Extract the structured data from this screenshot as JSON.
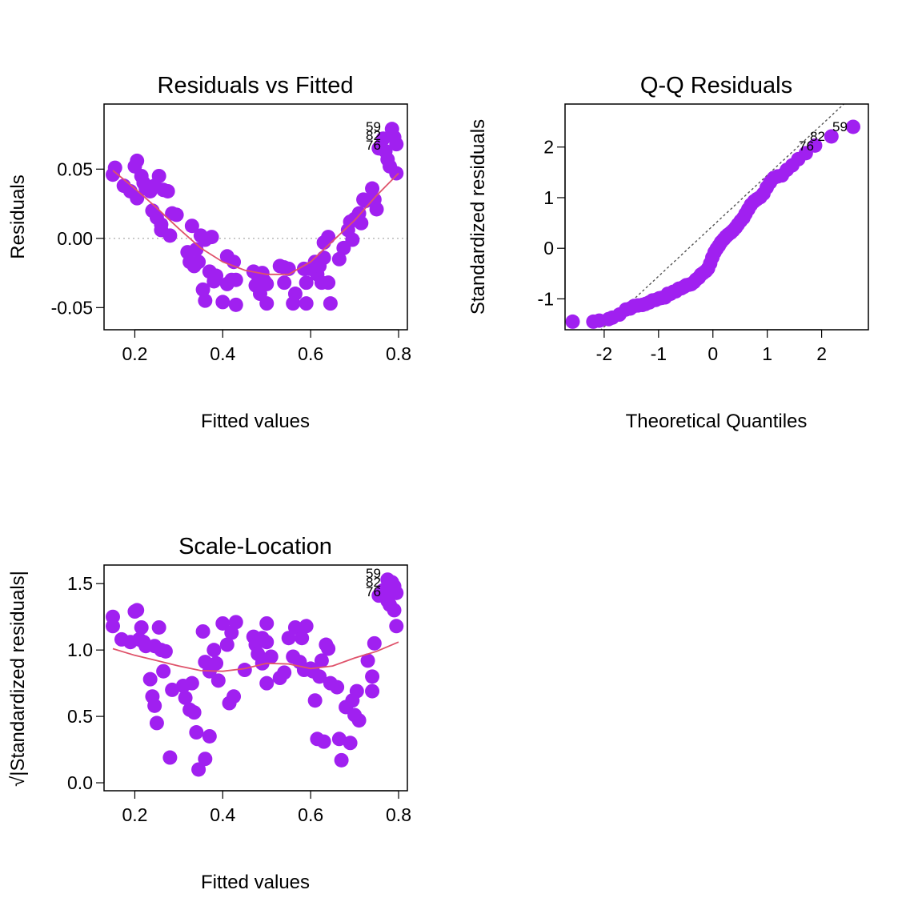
{
  "colors": {
    "points": "#A020F0",
    "smooth": "#DF536B",
    "reference": "#BEBEBE",
    "qqline": "#000000",
    "frame": "#000000",
    "background": "#FFFFFF"
  },
  "chart_data": [
    {
      "type": "scatter",
      "id": "resid-fitted",
      "title": "Residuals vs Fitted",
      "xlabel": "Fitted values",
      "ylabel": "Residuals",
      "xlim": [
        0.13,
        0.82
      ],
      "ylim": [
        -0.066,
        0.097
      ],
      "xticks": [
        0.2,
        0.4,
        0.6,
        0.8
      ],
      "xtick_labels": [
        "0.2",
        "0.4",
        "0.6",
        "0.8"
      ],
      "yticks": [
        -0.05,
        0,
        0.05
      ],
      "ytick_labels": [
        "-0.05",
        "0.00",
        "0.05"
      ],
      "hline": 0,
      "point_labels": [
        "59",
        "82",
        "76"
      ],
      "points": [
        [
          0.155,
          0.051
        ],
        [
          0.15,
          0.046
        ],
        [
          0.175,
          0.038
        ],
        [
          0.19,
          0.034
        ],
        [
          0.2,
          0.052
        ],
        [
          0.205,
          0.056
        ],
        [
          0.215,
          0.045
        ],
        [
          0.22,
          0.04
        ],
        [
          0.205,
          0.029
        ],
        [
          0.225,
          0.036
        ],
        [
          0.235,
          0.034
        ],
        [
          0.245,
          0.038
        ],
        [
          0.255,
          0.045
        ],
        [
          0.265,
          0.035
        ],
        [
          0.275,
          0.034
        ],
        [
          0.24,
          0.02
        ],
        [
          0.25,
          0.015
        ],
        [
          0.26,
          0.01
        ],
        [
          0.285,
          0.018
        ],
        [
          0.295,
          0.017
        ],
        [
          0.28,
          0.002
        ],
        [
          0.26,
          0.006
        ],
        [
          0.32,
          -0.01
        ],
        [
          0.325,
          -0.017
        ],
        [
          0.335,
          -0.02
        ],
        [
          0.34,
          -0.008
        ],
        [
          0.345,
          -0.017
        ],
        [
          0.33,
          0.009
        ],
        [
          0.35,
          0.002
        ],
        [
          0.36,
          -0.001
        ],
        [
          0.375,
          0.001
        ],
        [
          0.37,
          -0.024
        ],
        [
          0.385,
          -0.027
        ],
        [
          0.38,
          -0.031
        ],
        [
          0.355,
          -0.037
        ],
        [
          0.36,
          -0.045
        ],
        [
          0.4,
          -0.046
        ],
        [
          0.41,
          -0.033
        ],
        [
          0.42,
          -0.03
        ],
        [
          0.41,
          -0.013
        ],
        [
          0.425,
          -0.017
        ],
        [
          0.43,
          -0.048
        ],
        [
          0.43,
          -0.03
        ],
        [
          0.47,
          -0.024
        ],
        [
          0.475,
          -0.034
        ],
        [
          0.48,
          -0.027
        ],
        [
          0.485,
          -0.04
        ],
        [
          0.49,
          -0.032
        ],
        [
          0.495,
          -0.031
        ],
        [
          0.5,
          -0.033
        ],
        [
          0.5,
          -0.047
        ],
        [
          0.49,
          -0.025
        ],
        [
          0.53,
          -0.02
        ],
        [
          0.54,
          -0.021
        ],
        [
          0.55,
          -0.022
        ],
        [
          0.54,
          -0.032
        ],
        [
          0.56,
          -0.047
        ],
        [
          0.565,
          -0.04
        ],
        [
          0.585,
          -0.022
        ],
        [
          0.59,
          -0.032
        ],
        [
          0.59,
          -0.047
        ],
        [
          0.6,
          -0.022
        ],
        [
          0.61,
          -0.017
        ],
        [
          0.615,
          -0.026
        ],
        [
          0.625,
          -0.032
        ],
        [
          0.64,
          -0.032
        ],
        [
          0.645,
          -0.047
        ],
        [
          0.63,
          -0.014
        ],
        [
          0.62,
          -0.02
        ],
        [
          0.63,
          -0.003
        ],
        [
          0.64,
          0.001
        ],
        [
          0.665,
          -0.015
        ],
        [
          0.675,
          -0.007
        ],
        [
          0.685,
          0.006
        ],
        [
          0.69,
          0.012
        ],
        [
          0.7,
          0.014
        ],
        [
          0.71,
          0.018
        ],
        [
          0.715,
          0.011
        ],
        [
          0.695,
          -0.001
        ],
        [
          0.72,
          0.028
        ],
        [
          0.725,
          0.027
        ],
        [
          0.74,
          0.036
        ],
        [
          0.75,
          0.021
        ],
        [
          0.745,
          0.028
        ],
        [
          0.755,
          0.065
        ],
        [
          0.765,
          0.072
        ],
        [
          0.77,
          0.063
        ],
        [
          0.775,
          0.057
        ],
        [
          0.78,
          0.052
        ],
        [
          0.785,
          0.079
        ],
        [
          0.79,
          0.073
        ],
        [
          0.795,
          0.068
        ],
        [
          0.795,
          0.047
        ]
      ],
      "smooth": [
        [
          0.15,
          0.049
        ],
        [
          0.2,
          0.036
        ],
        [
          0.25,
          0.022
        ],
        [
          0.3,
          0.007
        ],
        [
          0.35,
          -0.007
        ],
        [
          0.4,
          -0.017
        ],
        [
          0.45,
          -0.023
        ],
        [
          0.5,
          -0.026
        ],
        [
          0.55,
          -0.026
        ],
        [
          0.6,
          -0.017
        ],
        [
          0.65,
          -0.002
        ],
        [
          0.7,
          0.013
        ],
        [
          0.75,
          0.031
        ],
        [
          0.8,
          0.047
        ]
      ]
    },
    {
      "type": "scatter",
      "id": "qq-residuals",
      "title": "Q-Q Residuals",
      "xlabel": "Theoretical Quantiles",
      "ylabel": "Standardized residuals",
      "xlim": [
        -2.72,
        2.86
      ],
      "ylim": [
        -1.61,
        2.85
      ],
      "xticks": [
        -2,
        -1,
        0,
        1,
        2
      ],
      "xtick_labels": [
        "-2",
        "-1",
        "0",
        "1",
        "2"
      ],
      "yticks": [
        -1,
        0,
        1,
        2
      ],
      "ytick_labels": [
        "-1",
        "0",
        "1",
        "2"
      ],
      "qqline": [
        [
          -2.72,
          -2.27
        ],
        [
          2.86,
          3.3
        ]
      ],
      "point_labels": [
        "59",
        "82",
        "76"
      ],
      "points": [
        [
          -2.58,
          -1.45
        ],
        [
          -2.2,
          -1.45
        ],
        [
          -2.09,
          -1.43
        ],
        [
          -1.92,
          -1.4
        ],
        [
          -1.85,
          -1.37
        ],
        [
          -1.72,
          -1.31
        ],
        [
          -1.6,
          -1.21
        ],
        [
          -1.52,
          -1.19
        ],
        [
          -1.45,
          -1.14
        ],
        [
          -1.38,
          -1.13
        ],
        [
          -1.3,
          -1.12
        ],
        [
          -1.24,
          -1.1
        ],
        [
          -1.17,
          -1.07
        ],
        [
          -1.11,
          -1.03
        ],
        [
          -1.05,
          -1.02
        ],
        [
          -0.99,
          -0.99
        ],
        [
          -0.94,
          -0.98
        ],
        [
          -0.88,
          -0.97
        ],
        [
          -0.83,
          -0.9
        ],
        [
          -0.78,
          -0.9
        ],
        [
          -0.73,
          -0.86
        ],
        [
          -0.68,
          -0.85
        ],
        [
          -0.63,
          -0.8
        ],
        [
          -0.58,
          -0.79
        ],
        [
          -0.53,
          -0.76
        ],
        [
          -0.49,
          -0.73
        ],
        [
          -0.44,
          -0.72
        ],
        [
          -0.4,
          -0.71
        ],
        [
          -0.35,
          -0.67
        ],
        [
          -0.31,
          -0.62
        ],
        [
          -0.26,
          -0.58
        ],
        [
          -0.22,
          -0.52
        ],
        [
          -0.18,
          -0.49
        ],
        [
          -0.13,
          -0.45
        ],
        [
          -0.09,
          -0.4
        ],
        [
          -0.05,
          -0.3
        ],
        [
          -0.01,
          -0.18
        ],
        [
          0.03,
          -0.08
        ],
        [
          0.07,
          -0.01
        ],
        [
          0.11,
          0.05
        ],
        [
          0.15,
          0.12
        ],
        [
          0.2,
          0.18
        ],
        [
          0.24,
          0.23
        ],
        [
          0.28,
          0.27
        ],
        [
          0.33,
          0.31
        ],
        [
          0.37,
          0.35
        ],
        [
          0.42,
          0.41
        ],
        [
          0.46,
          0.47
        ],
        [
          0.51,
          0.54
        ],
        [
          0.56,
          0.6
        ],
        [
          0.6,
          0.68
        ],
        [
          0.65,
          0.77
        ],
        [
          0.7,
          0.86
        ],
        [
          0.76,
          0.93
        ],
        [
          0.81,
          0.97
        ],
        [
          0.87,
          1.01
        ],
        [
          0.93,
          1.08
        ],
        [
          0.99,
          1.2
        ],
        [
          1.05,
          1.3
        ],
        [
          1.12,
          1.39
        ],
        [
          1.19,
          1.42
        ],
        [
          1.27,
          1.44
        ],
        [
          1.36,
          1.55
        ],
        [
          1.46,
          1.64
        ],
        [
          1.57,
          1.76
        ],
        [
          1.71,
          1.88
        ],
        [
          1.88,
          2.03
        ],
        [
          2.18,
          2.21
        ],
        [
          2.58,
          2.4
        ]
      ]
    },
    {
      "type": "scatter",
      "id": "scale-location",
      "title": "Scale-Location",
      "xlabel": "Fitted values",
      "ylabel": "√|Standardized residuals|",
      "xlim": [
        0.13,
        0.82
      ],
      "ylim": [
        -0.06,
        1.64
      ],
      "xticks": [
        0.2,
        0.4,
        0.6,
        0.8
      ],
      "xtick_labels": [
        "0.2",
        "0.4",
        "0.6",
        "0.8"
      ],
      "yticks": [
        0,
        0.5,
        1,
        1.5
      ],
      "ytick_labels": [
        "0.0",
        "0.5",
        "1.0",
        "1.5"
      ],
      "point_labels": [
        "59",
        "82",
        "76"
      ],
      "points": [
        [
          0.15,
          1.25
        ],
        [
          0.15,
          1.18
        ],
        [
          0.17,
          1.08
        ],
        [
          0.19,
          1.06
        ],
        [
          0.2,
          1.29
        ],
        [
          0.205,
          1.3
        ],
        [
          0.215,
          1.17
        ],
        [
          0.21,
          1.08
        ],
        [
          0.22,
          1.06
        ],
        [
          0.225,
          1.03
        ],
        [
          0.235,
          0.78
        ],
        [
          0.24,
          0.65
        ],
        [
          0.245,
          0.58
        ],
        [
          0.25,
          0.45
        ],
        [
          0.245,
          1.03
        ],
        [
          0.26,
          1.0
        ],
        [
          0.255,
          1.17
        ],
        [
          0.265,
          0.84
        ],
        [
          0.27,
          0.99
        ],
        [
          0.28,
          0.19
        ],
        [
          0.285,
          0.7
        ],
        [
          0.31,
          0.73
        ],
        [
          0.315,
          0.64
        ],
        [
          0.325,
          0.55
        ],
        [
          0.33,
          0.75
        ],
        [
          0.335,
          0.53
        ],
        [
          0.34,
          0.38
        ],
        [
          0.345,
          0.1
        ],
        [
          0.36,
          0.18
        ],
        [
          0.355,
          1.14
        ],
        [
          0.36,
          0.91
        ],
        [
          0.37,
          0.84
        ],
        [
          0.37,
          0.35
        ],
        [
          0.38,
          1.0
        ],
        [
          0.385,
          0.9
        ],
        [
          0.39,
          0.77
        ],
        [
          0.4,
          1.2
        ],
        [
          0.41,
          1.04
        ],
        [
          0.415,
          0.6
        ],
        [
          0.42,
          1.13
        ],
        [
          0.425,
          0.65
        ],
        [
          0.43,
          1.21
        ],
        [
          0.45,
          0.85
        ],
        [
          0.47,
          1.1
        ],
        [
          0.475,
          1.04
        ],
        [
          0.48,
          0.97
        ],
        [
          0.49,
          0.9
        ],
        [
          0.49,
          1.09
        ],
        [
          0.5,
          1.2
        ],
        [
          0.5,
          1.06
        ],
        [
          0.5,
          0.75
        ],
        [
          0.51,
          0.95
        ],
        [
          0.53,
          0.79
        ],
        [
          0.54,
          0.83
        ],
        [
          0.55,
          1.09
        ],
        [
          0.56,
          0.95
        ],
        [
          0.565,
          1.17
        ],
        [
          0.575,
          0.91
        ],
        [
          0.58,
          1.09
        ],
        [
          0.585,
          0.85
        ],
        [
          0.59,
          1.18
        ],
        [
          0.6,
          0.86
        ],
        [
          0.605,
          0.84
        ],
        [
          0.61,
          0.62
        ],
        [
          0.615,
          0.33
        ],
        [
          0.62,
          0.8
        ],
        [
          0.625,
          0.92
        ],
        [
          0.63,
          0.31
        ],
        [
          0.635,
          1.04
        ],
        [
          0.64,
          1.01
        ],
        [
          0.645,
          0.75
        ],
        [
          0.66,
          0.72
        ],
        [
          0.665,
          0.33
        ],
        [
          0.67,
          0.17
        ],
        [
          0.68,
          0.57
        ],
        [
          0.69,
          0.3
        ],
        [
          0.695,
          0.62
        ],
        [
          0.7,
          0.51
        ],
        [
          0.705,
          0.69
        ],
        [
          0.71,
          0.47
        ],
        [
          0.73,
          0.92
        ],
        [
          0.74,
          0.8
        ],
        [
          0.74,
          0.69
        ],
        [
          0.745,
          1.05
        ],
        [
          0.755,
          1.41
        ],
        [
          0.765,
          1.45
        ],
        [
          0.775,
          1.53
        ],
        [
          0.775,
          1.37
        ],
        [
          0.78,
          1.34
        ],
        [
          0.785,
          1.51
        ],
        [
          0.79,
          1.3
        ],
        [
          0.79,
          1.48
        ],
        [
          0.795,
          1.43
        ],
        [
          0.795,
          1.18
        ]
      ],
      "smooth": [
        [
          0.15,
          1.01
        ],
        [
          0.2,
          0.96
        ],
        [
          0.25,
          0.92
        ],
        [
          0.3,
          0.88
        ],
        [
          0.35,
          0.845
        ],
        [
          0.4,
          0.84
        ],
        [
          0.45,
          0.86
        ],
        [
          0.5,
          0.9
        ],
        [
          0.55,
          0.895
        ],
        [
          0.6,
          0.86
        ],
        [
          0.65,
          0.88
        ],
        [
          0.7,
          0.94
        ],
        [
          0.75,
          0.99
        ],
        [
          0.8,
          1.06
        ]
      ]
    }
  ]
}
